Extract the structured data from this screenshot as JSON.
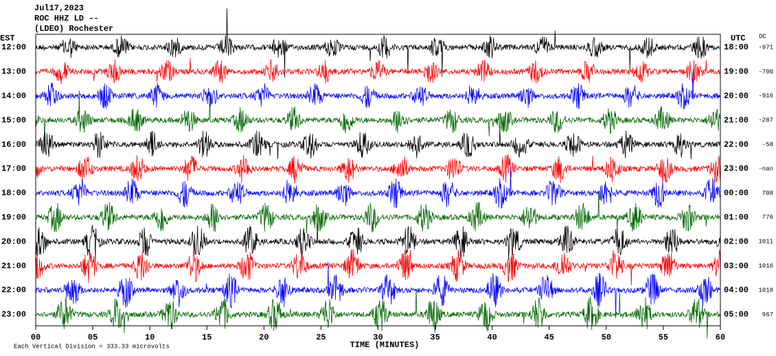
{
  "header": {
    "lines": [
      "Jul17,2023",
      "ROC HHZ LD --",
      "(LDEO) Rochester"
    ]
  },
  "left_label": "EST",
  "right_label": "UTC",
  "dc_label": "DC",
  "rows": [
    {
      "est": "12:00",
      "utc": "18:00",
      "dc": "-971"
    },
    {
      "est": "13:00",
      "utc": "19:00",
      "dc": "-700"
    },
    {
      "est": "14:00",
      "utc": "20:00",
      "dc": "-916"
    },
    {
      "est": "15:00",
      "utc": "21:00",
      "dc": "-287"
    },
    {
      "est": "16:00",
      "utc": "22:00",
      "dc": "-58"
    },
    {
      "est": "17:00",
      "utc": "23:00",
      "dc": "-nan"
    },
    {
      "est": "18:00",
      "utc": "00:00",
      "dc": "708"
    },
    {
      "est": "19:00",
      "utc": "01:00",
      "dc": "776"
    },
    {
      "est": "20:00",
      "utc": "02:00",
      "dc": "1011"
    },
    {
      "est": "21:00",
      "utc": "03:00",
      "dc": "1016"
    },
    {
      "est": "22:00",
      "utc": "04:00",
      "dc": "1018"
    },
    {
      "est": "23:00",
      "utc": "05:00",
      "dc": "967"
    }
  ],
  "x_axis": {
    "ticks": [
      "00",
      "05",
      "10",
      "15",
      "20",
      "25",
      "30",
      "35",
      "40",
      "45",
      "50",
      "55",
      "60"
    ],
    "label": "TIME (MINUTES)"
  },
  "footer": "Each Vertical Division =  333.33 microvolts"
}
